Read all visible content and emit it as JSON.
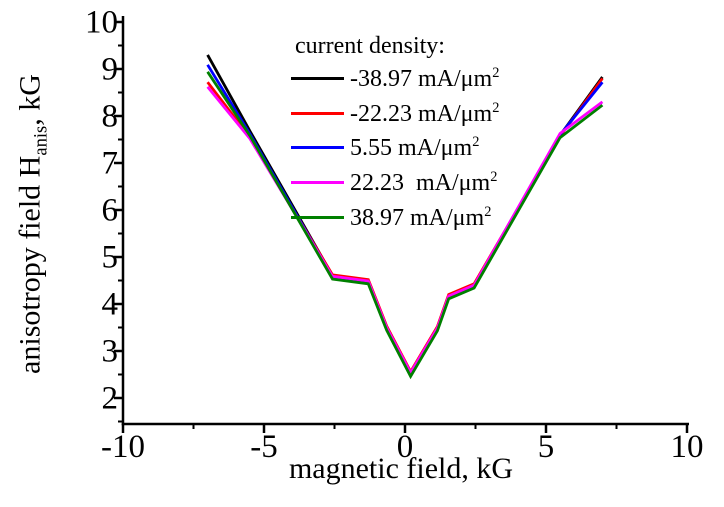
{
  "figure": {
    "background_color": "#ffffff",
    "axis_color": "#000000"
  },
  "chart_data": {
    "type": "line",
    "title": "",
    "xlabel": "magnetic field, kG",
    "ylabel": "anisotropy field Hanis, kG",
    "ylabel_parts": {
      "pre": "anisotropy field H",
      "sub": "anis",
      "post": ", kG"
    },
    "xlim": [
      -10,
      10
    ],
    "ylim": [
      1.45,
      10
    ],
    "grid": "off",
    "legend_position": "upper-center-inside",
    "legend_frame": "none",
    "legend_title": "current density:",
    "x_major_ticks": [
      -10,
      -5,
      0,
      5,
      10
    ],
    "x_minor_ticks": [
      -7.5,
      -2.5,
      2.5,
      7.5
    ],
    "y_major_ticks": [
      2,
      3,
      4,
      5,
      6,
      7,
      8,
      9,
      10
    ],
    "y_minor_ticks": [
      1.5,
      2.5,
      3.5,
      4.5,
      5.5,
      6.5,
      7.5,
      8.5,
      9.5
    ],
    "x": [
      -7,
      -5.5,
      -2.57,
      -1.3,
      -0.65,
      0.2,
      1.15,
      1.55,
      2.45,
      5.5,
      7
    ],
    "series": [
      {
        "name": "-38.97 mA/μm²",
        "color": "#000000",
        "values": [
          9.3,
          7.68,
          4.6,
          4.5,
          3.51,
          2.55,
          3.5,
          4.18,
          4.41,
          7.59,
          8.83
        ]
      },
      {
        "name": "-22.23 mA/μm²",
        "color": "#ff0000",
        "values": [
          8.72,
          7.55,
          4.62,
          4.52,
          3.53,
          2.56,
          3.52,
          4.2,
          4.43,
          7.57,
          8.8
        ]
      },
      {
        "name": "5.55 mA/μm²",
        "color": "#0000ff",
        "values": [
          9.09,
          7.62,
          4.57,
          4.47,
          3.48,
          2.51,
          3.47,
          4.15,
          4.38,
          7.6,
          8.72
        ]
      },
      {
        "name": "22.23  mA/μm²",
        "color": "#ff00ff",
        "values": [
          8.62,
          7.52,
          4.59,
          4.49,
          3.5,
          2.54,
          3.49,
          4.17,
          4.4,
          7.63,
          8.3
        ]
      },
      {
        "name": "38.97 mA/μm²",
        "color": "#008000",
        "values": [
          8.94,
          7.58,
          4.53,
          4.43,
          3.44,
          2.46,
          3.43,
          4.11,
          4.34,
          7.54,
          8.23
        ]
      }
    ]
  }
}
